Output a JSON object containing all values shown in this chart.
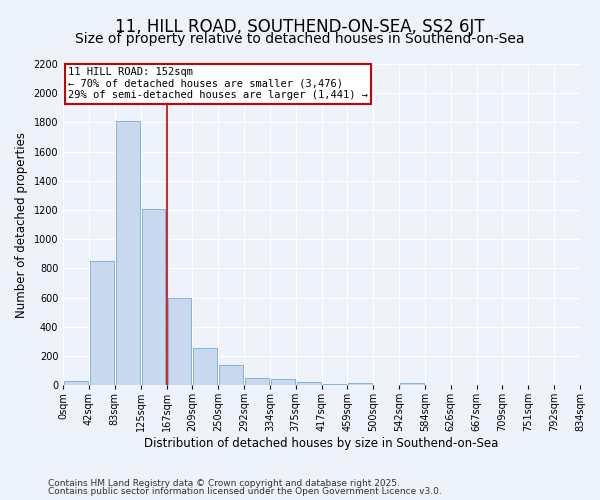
{
  "title": "11, HILL ROAD, SOUTHEND-ON-SEA, SS2 6JT",
  "subtitle": "Size of property relative to detached houses in Southend-on-Sea",
  "xlabel": "Distribution of detached houses by size in Southend-on-Sea",
  "ylabel": "Number of detached properties",
  "bins": [
    "0sqm",
    "42sqm",
    "83sqm",
    "125sqm",
    "167sqm",
    "209sqm",
    "250sqm",
    "292sqm",
    "334sqm",
    "375sqm",
    "417sqm",
    "459sqm",
    "500sqm",
    "542sqm",
    "584sqm",
    "626sqm",
    "667sqm",
    "709sqm",
    "751sqm",
    "792sqm",
    "834sqm"
  ],
  "values": [
    25,
    850,
    1810,
    1210,
    595,
    255,
    135,
    50,
    40,
    20,
    5,
    15,
    0,
    15,
    0,
    0,
    0,
    0,
    0,
    0
  ],
  "bar_color": "#c8d8ef",
  "bar_edge_color": "#7aaacf",
  "vline_color": "#cc0000",
  "vline_x_idx": 3.5,
  "annotation_text": "11 HILL ROAD: 152sqm\n← 70% of detached houses are smaller (3,476)\n29% of semi-detached houses are larger (1,441) →",
  "annotation_box_color": "#ffffff",
  "annotation_box_edge_color": "#cc0000",
  "ylim": [
    0,
    2200
  ],
  "yticks": [
    0,
    200,
    400,
    600,
    800,
    1000,
    1200,
    1400,
    1600,
    1800,
    2000,
    2200
  ],
  "footnote1": "Contains HM Land Registry data © Crown copyright and database right 2025.",
  "footnote2": "Contains public sector information licensed under the Open Government Licence v3.0.",
  "bg_color": "#edf2fb",
  "grid_color": "#ffffff",
  "title_fontsize": 12,
  "subtitle_fontsize": 10,
  "axis_label_fontsize": 8.5,
  "tick_fontsize": 7,
  "annot_fontsize": 7.5,
  "footnote_fontsize": 6.5
}
